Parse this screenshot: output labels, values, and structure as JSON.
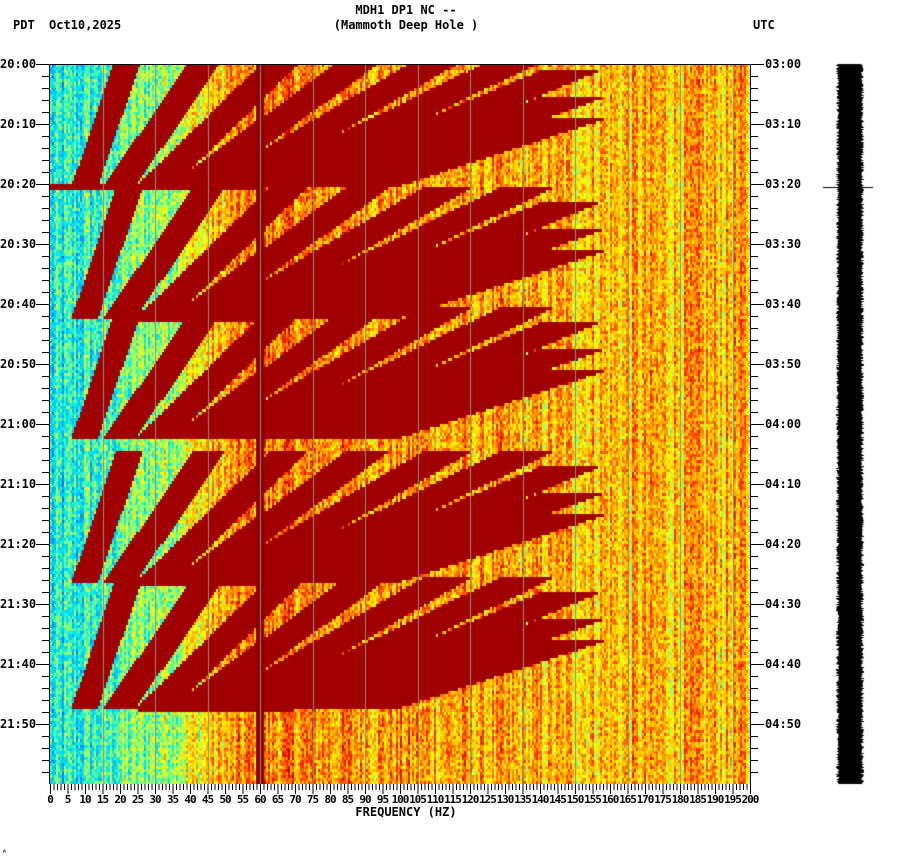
{
  "header": {
    "title_line1": "MDH1 DP1 NC --",
    "title_line2": "(Mammoth Deep Hole )",
    "left_timezone": "PDT",
    "date": "Oct10,2025",
    "right_timezone": "UTC"
  },
  "footer_mark": "ᴬ",
  "colors": {
    "background": "#ffffff",
    "axis": "#000000",
    "gridline": "#8c8c8c",
    "colormap": [
      "#0050ff",
      "#00a8ff",
      "#00e8f0",
      "#80ff80",
      "#ffff00",
      "#ffb000",
      "#ff4000",
      "#d00000",
      "#800000"
    ],
    "seismogram": "#000000"
  },
  "chart_data": {
    "type": "heatmap",
    "title": "MDH1 DP1 NC -- (Mammoth Deep Hole )",
    "xlabel": "FREQUENCY (HZ)",
    "ylabel_left": "PDT",
    "ylabel_right": "UTC",
    "date": "Oct10,2025",
    "xlim": [
      0,
      200
    ],
    "x_ticks": [
      0,
      5,
      10,
      15,
      20,
      25,
      30,
      35,
      40,
      45,
      50,
      55,
      60,
      65,
      70,
      75,
      80,
      85,
      90,
      95,
      100,
      105,
      110,
      115,
      120,
      125,
      130,
      135,
      140,
      145,
      150,
      155,
      160,
      165,
      170,
      175,
      180,
      185,
      190,
      195,
      200
    ],
    "x_minor_tick_step": 1,
    "x_gridlines_every_hz": 15,
    "y_ticks_left": [
      "20:00",
      "20:10",
      "20:20",
      "20:30",
      "20:40",
      "20:50",
      "21:00",
      "21:10",
      "21:20",
      "21:30",
      "21:40",
      "21:50"
    ],
    "y_ticks_right": [
      "03:00",
      "03:10",
      "03:20",
      "03:30",
      "03:40",
      "03:50",
      "04:00",
      "04:10",
      "04:20",
      "04:30",
      "04:40",
      "04:50"
    ],
    "y_minor_tick_step_min": 2,
    "time_span_minutes": 120,
    "features": {
      "persistent_line_hz": 60,
      "low_freq_band": "blue/cyan (quiet) below ~25-35 Hz",
      "high_freq_band": "yellow/orange/red above ~130 Hz",
      "chirp_sweep_starts_min": [
        20.5,
        42.5,
        62.5,
        86.5,
        107.5
      ],
      "chirp_sweep_period_min": 21.5,
      "chirp_harmonics": 9,
      "broadband_events_min": [
        20.5,
        42.5,
        86.5,
        107.5
      ]
    },
    "seismogram": {
      "position": "right of spectrogram",
      "event_marker_utc": "03:20"
    }
  }
}
